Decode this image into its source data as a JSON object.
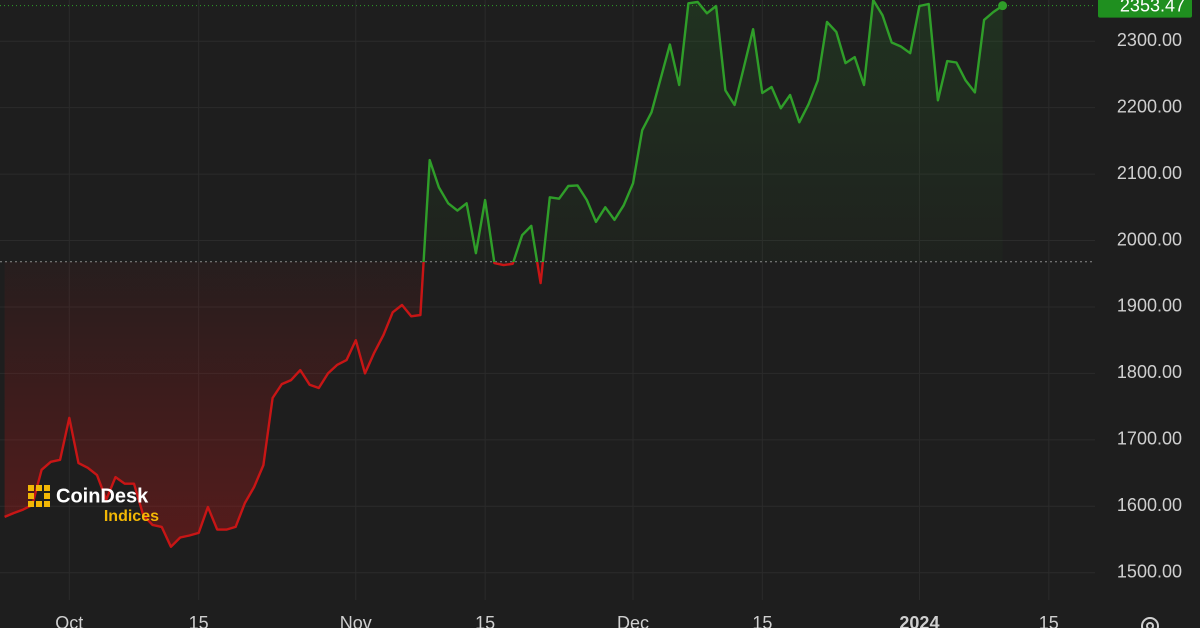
{
  "chart_data": {
    "type": "line",
    "x": [
      0,
      1,
      2,
      3,
      4,
      5,
      6,
      7,
      8,
      9,
      10,
      11,
      12,
      13,
      14,
      15,
      16,
      17,
      18,
      19,
      20,
      21,
      22,
      23,
      24,
      25,
      26,
      27,
      28,
      29,
      30,
      31,
      32,
      33,
      34,
      35,
      36,
      37,
      38,
      39,
      40,
      41,
      42,
      43,
      44,
      45,
      46,
      47,
      48,
      49,
      50,
      51,
      52,
      53,
      54,
      55,
      56,
      57,
      58,
      59,
      60,
      61,
      62,
      63,
      64,
      65,
      66,
      67,
      68,
      69,
      70,
      71,
      72,
      73,
      74,
      75,
      76,
      77,
      78,
      79,
      80,
      81,
      82,
      83,
      84,
      85,
      86,
      87,
      88,
      89,
      90,
      91,
      92,
      93,
      94,
      95,
      96,
      97,
      98,
      99,
      100,
      101,
      102,
      103,
      104,
      105,
      106,
      107,
      108
    ],
    "series": [
      {
        "color": "#2f9e29",
        "below_color": "#c81515",
        "values": [
          1584,
          1590,
          1595,
          1602,
          1655,
          1667,
          1670,
          1733,
          1665,
          1658,
          1647,
          1610,
          1644,
          1634,
          1634,
          1587,
          1572,
          1569,
          1539,
          1553,
          1556,
          1560,
          1599,
          1565,
          1565,
          1569,
          1605,
          1629,
          1662,
          1763,
          1784,
          1790,
          1805,
          1783,
          1778,
          1800,
          1813,
          1820,
          1850,
          1800,
          1831,
          1858,
          1892,
          1903,
          1886,
          1888,
          2121,
          2080,
          2056,
          2045,
          2056,
          1981,
          2061,
          1966,
          1963,
          1965,
          2008,
          2022,
          1936,
          2065,
          2063,
          2082,
          2083,
          2061,
          2028,
          2050,
          2031,
          2053,
          2086,
          2166,
          2193,
          2244,
          2295,
          2234,
          2357,
          2359,
          2342,
          2353,
          2226,
          2204,
          2261,
          2318,
          2222,
          2231,
          2199,
          2219,
          2178,
          2205,
          2241,
          2329,
          2314,
          2267,
          2276,
          2234,
          2362,
          2339,
          2298,
          2292,
          2282,
          2353,
          2356,
          2211,
          2270,
          2268,
          2241,
          2223,
          2332,
          2344,
          2353.47
        ]
      }
    ],
    "baseline": 1968,
    "price_label": "2353.47",
    "xlim": [
      -0.5,
      118
    ],
    "xticks": [
      {
        "value": 7,
        "label": "Oct"
      },
      {
        "value": 21,
        "label": "15"
      },
      {
        "value": 38,
        "label": "Nov"
      },
      {
        "value": 52,
        "label": "15"
      },
      {
        "value": 68,
        "label": "Dec"
      },
      {
        "value": 82,
        "label": "15"
      },
      {
        "value": 99,
        "label": "2024"
      },
      {
        "value": 113,
        "label": "15"
      }
    ],
    "ylim": [
      1459,
      2362
    ],
    "yticks": [
      {
        "value": 1500,
        "label": "1500.00"
      },
      {
        "value": 1600,
        "label": "1600.00"
      },
      {
        "value": 1700,
        "label": "1700.00"
      },
      {
        "value": 1800,
        "label": "1800.00"
      },
      {
        "value": 1900,
        "label": "1900.00"
      },
      {
        "value": 2000,
        "label": "2000.00"
      },
      {
        "value": 2100,
        "label": "2100.00"
      },
      {
        "value": 2200,
        "label": "2200.00"
      },
      {
        "value": 2300,
        "label": "2300.00"
      }
    ],
    "grid": true
  },
  "logo": {
    "name": "CoinDesk",
    "sub": "Indices"
  }
}
